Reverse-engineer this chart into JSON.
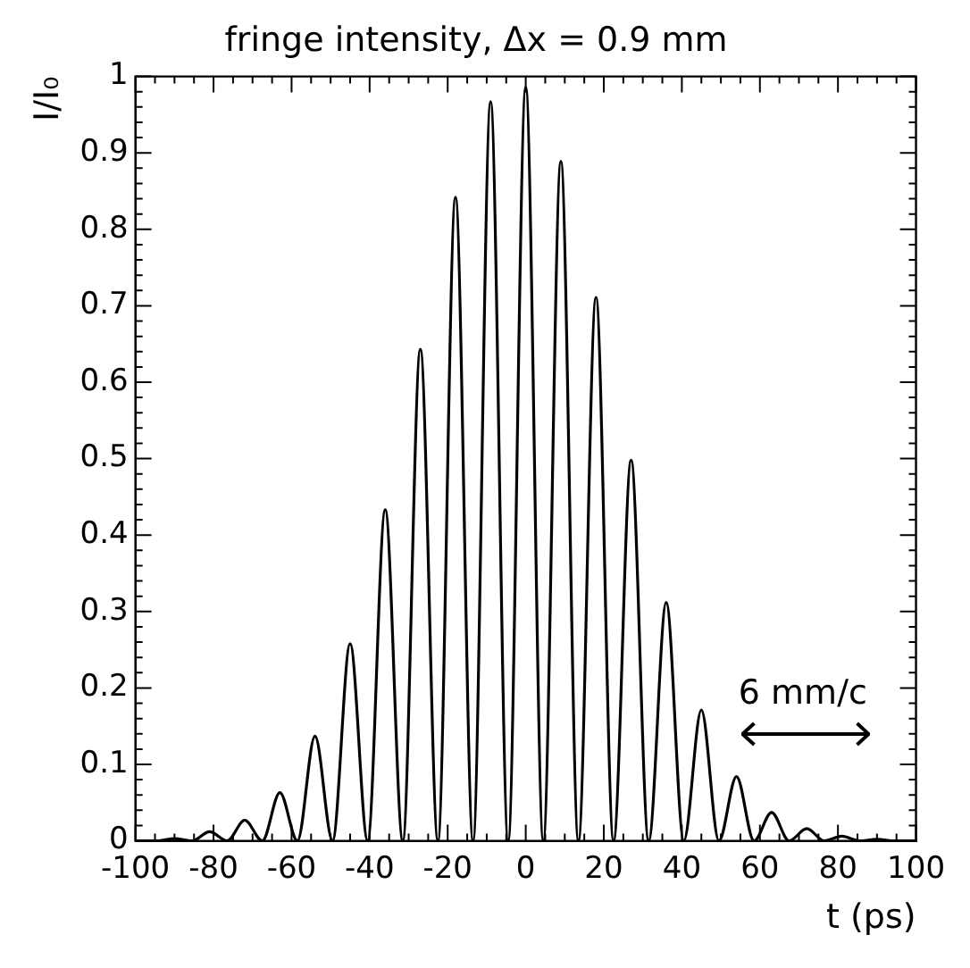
{
  "chart_data": {
    "type": "line",
    "title": "fringe intensity, Δx = 0.9 mm",
    "xlabel": "t (ps)",
    "ylabel": "I/I₀",
    "x": [
      -100,
      -94.5,
      -90,
      -85.5,
      -81,
      -76.5,
      -72,
      -67.5,
      -63,
      -58.5,
      -54,
      -49.5,
      -45,
      -40.5,
      -36,
      -31.5,
      -27,
      -22.5,
      -18,
      -13.5,
      -9,
      -4.5,
      0,
      4.5,
      9,
      13.5,
      18,
      22.5,
      27,
      31.5,
      36,
      40.5,
      45,
      49.5,
      54,
      58.5,
      63,
      67.5,
      72,
      76.5,
      81,
      85.5,
      90,
      94.5,
      100
    ],
    "series": [
      {
        "color": "#000000",
        "values": [
          0,
          0,
          0.003,
          0,
          0.012,
          0,
          0.027,
          0,
          0.063,
          0,
          0.137,
          0,
          0.258,
          0,
          0.433,
          0,
          0.643,
          0,
          0.842,
          0,
          0.967,
          0,
          0.986,
          0,
          0.889,
          0,
          0.711,
          0,
          0.498,
          0,
          0.312,
          0,
          0.171,
          0,
          0.084,
          0,
          0.037,
          0,
          0.016,
          0,
          0.006,
          0,
          0.002,
          0,
          0
        ]
      }
    ],
    "xlim": [
      -100,
      100
    ],
    "xticks": [
      -100,
      -80,
      -60,
      -40,
      -20,
      0,
      20,
      40,
      60,
      80,
      100
    ],
    "ylim": [
      0,
      1
    ],
    "yticks": [
      0,
      0.1,
      0.2,
      0.3,
      0.4,
      0.5,
      0.6,
      0.7,
      0.8,
      0.9,
      1
    ],
    "annotations": [
      "6 mm/c"
    ],
    "grid": false,
    "legend": false,
    "marker": "none",
    "line_style": "solid"
  }
}
